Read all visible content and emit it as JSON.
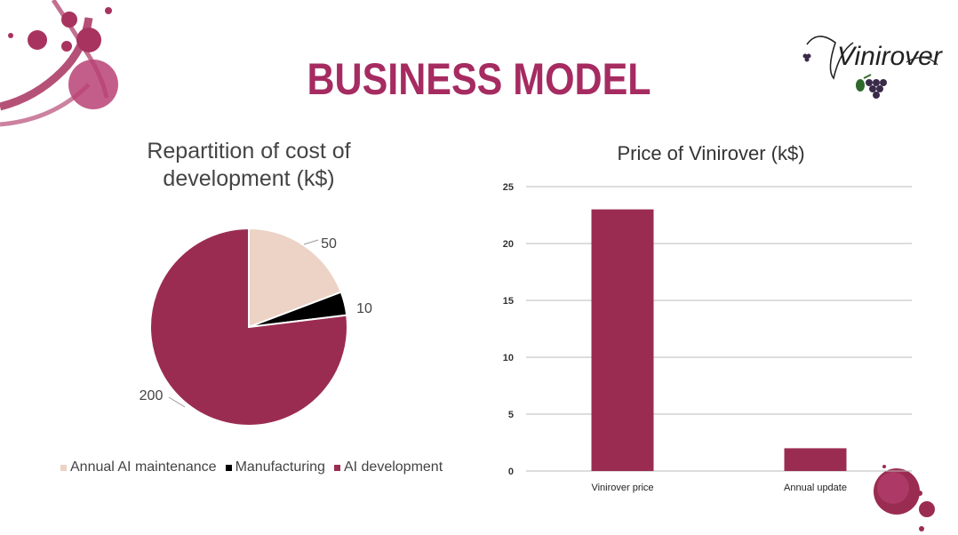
{
  "slide": {
    "title": "BUSINESS MODEL",
    "accent_color": "#a52b61",
    "logo_text": "Vinirover"
  },
  "chart_data": [
    {
      "type": "pie",
      "title": "Repartition of cost of development (k$)",
      "labels": [
        "Annual AI maintenance",
        "Manufacturing",
        "AI development"
      ],
      "values": [
        50,
        10,
        200
      ],
      "colors": [
        "#ecd3c6",
        "#000000",
        "#9b2c51"
      ],
      "legend_position": "bottom"
    },
    {
      "type": "bar",
      "title": "Price of Vinirover (k$)",
      "categories": [
        "Vinirover price",
        "Annual update"
      ],
      "values": [
        23,
        2
      ],
      "ylim": [
        0,
        25
      ],
      "yticks": [
        0,
        5,
        10,
        15,
        20,
        25
      ],
      "grid": true,
      "color": "#9b2c51"
    }
  ]
}
